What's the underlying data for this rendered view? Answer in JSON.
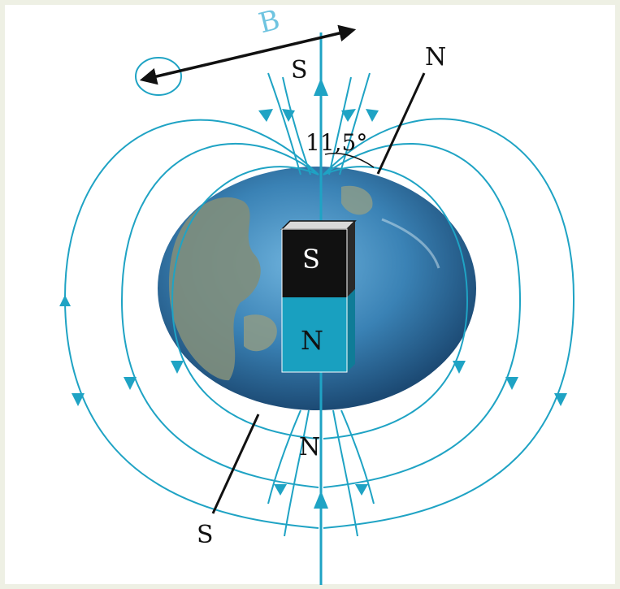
{
  "diagram": {
    "labels": {
      "field_vector": "B",
      "geographic_north_top": "S",
      "axis_north": "N",
      "angle": "11,5°",
      "magnet_top": "S",
      "magnet_bottom": "N",
      "geographic_south_bottom": "N",
      "axis_south": "S"
    },
    "colors": {
      "field_line": "#1fa3c4",
      "axis": "#111111",
      "magnet_south": "#111111",
      "magnet_north": "#19a0c0",
      "ocean": "#3a82b5",
      "land": "#7f8e7c"
    }
  }
}
